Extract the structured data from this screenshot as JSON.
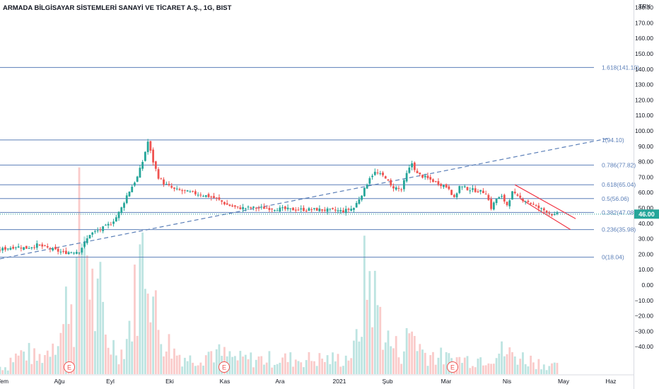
{
  "header": {
    "title": "ARMADA BİLGİSAYAR SİSTEMLERİ SANAYİ VE TİCARET A.Ş., 1G, BIST"
  },
  "axis": {
    "currency": "TRY",
    "ticks": [
      "190.00",
      "180.00",
      "170.00",
      "160.00",
      "150.00",
      "140.00",
      "130.00",
      "120.00",
      "110.00",
      "100.00",
      "90.00",
      "80.00",
      "70.00",
      "60.00",
      "50.00",
      "40.00",
      "30.00",
      "20.00",
      "10.00",
      "0.00",
      "−10.00",
      "−20.00",
      "−30.00",
      "−40.00"
    ],
    "x_labels": [
      "Tem",
      "Ağu",
      "Eyl",
      "Eki",
      "Kas",
      "Ara",
      "2021",
      "Şub",
      "Mar",
      "Nis",
      "May",
      "Haz"
    ]
  },
  "last_price": {
    "label": "46.00",
    "value": 46.0
  },
  "events": [
    "E",
    "E",
    "E"
  ],
  "colors": {
    "up": "#26a69a",
    "down": "#ef5350",
    "fib": "#5b7fb8",
    "trend": "#5b7fb8",
    "channel": "#f23645",
    "badge": "#26a69a"
  },
  "chart_data": {
    "type": "candlestick",
    "title": "ARMADA BİLGİSAYAR SİSTEMLERİ SANAYİ VE TİCARET A.Ş., 1G, BIST",
    "ylabel": "TRY",
    "ylim": [
      -44,
      196
    ],
    "fib_levels": [
      {
        "ratio": "1.618",
        "label": "1.618(141.10)",
        "value": 141.1
      },
      {
        "ratio": "1",
        "label": "1(94.10)",
        "value": 94.1
      },
      {
        "ratio": "0.786",
        "label": "0.786(77.82)",
        "value": 77.82
      },
      {
        "ratio": "0.618",
        "label": "0.618(65.04)",
        "value": 65.04
      },
      {
        "ratio": "0.5",
        "label": "0.5(56.06)",
        "value": 56.06
      },
      {
        "ratio": "0.382",
        "label": "0.382(47.08)",
        "value": 47.08
      },
      {
        "ratio": "0.236",
        "label": "0.236(35.98)",
        "value": 35.98
      },
      {
        "ratio": "0",
        "label": "0(18.04)",
        "value": 18.04
      }
    ],
    "trendline": [
      {
        "x": 0,
        "y": 17
      },
      {
        "x": 230,
        "y": 95
      }
    ],
    "channel": {
      "upper": [
        {
          "x": 195,
          "y": 65
        },
        {
          "x": 218,
          "y": 43
        }
      ],
      "lower": [
        {
          "x": 197,
          "y": 56
        },
        {
          "x": 216,
          "y": 36
        }
      ]
    },
    "price_series": [
      [
        0,
        23
      ],
      [
        6,
        25
      ],
      [
        10,
        24
      ],
      [
        14,
        26
      ],
      [
        18,
        24
      ],
      [
        24,
        21
      ],
      [
        30,
        22
      ],
      [
        32,
        27
      ],
      [
        34,
        33
      ],
      [
        38,
        36
      ],
      [
        42,
        40
      ],
      [
        44,
        44
      ],
      [
        46,
        50
      ],
      [
        48,
        58
      ],
      [
        50,
        64
      ],
      [
        52,
        70
      ],
      [
        54,
        80
      ],
      [
        56,
        93
      ],
      [
        58,
        80
      ],
      [
        60,
        70
      ],
      [
        62,
        66
      ],
      [
        66,
        62
      ],
      [
        72,
        60
      ],
      [
        78,
        58
      ],
      [
        82,
        56
      ],
      [
        86,
        52
      ],
      [
        90,
        50
      ],
      [
        100,
        50
      ],
      [
        110,
        49
      ],
      [
        120,
        49
      ],
      [
        130,
        48
      ],
      [
        134,
        50
      ],
      [
        136,
        56
      ],
      [
        138,
        62
      ],
      [
        140,
        70
      ],
      [
        142,
        73
      ],
      [
        146,
        70
      ],
      [
        148,
        64
      ],
      [
        152,
        62
      ],
      [
        154,
        72
      ],
      [
        156,
        79
      ],
      [
        158,
        72
      ],
      [
        162,
        69
      ],
      [
        166,
        66
      ],
      [
        170,
        63
      ],
      [
        172,
        56
      ],
      [
        174,
        64
      ],
      [
        178,
        62
      ],
      [
        184,
        60
      ],
      [
        186,
        50
      ],
      [
        188,
        56
      ],
      [
        190,
        57
      ],
      [
        192,
        52
      ],
      [
        194,
        60
      ],
      [
        196,
        57
      ],
      [
        200,
        54
      ],
      [
        204,
        50
      ],
      [
        208,
        47
      ],
      [
        210,
        45
      ],
      [
        211,
        46
      ]
    ],
    "volume_series": [
      [
        4,
        2
      ],
      [
        10,
        3
      ],
      [
        14,
        2
      ],
      [
        18,
        3
      ],
      [
        20,
        5
      ],
      [
        24,
        6
      ],
      [
        26,
        12
      ],
      [
        28,
        8
      ],
      [
        30,
        18
      ],
      [
        32,
        20
      ],
      [
        34,
        14
      ],
      [
        36,
        8
      ],
      [
        38,
        10
      ],
      [
        40,
        5
      ],
      [
        42,
        4
      ],
      [
        46,
        3
      ],
      [
        48,
        5
      ],
      [
        50,
        8
      ],
      [
        52,
        12
      ],
      [
        54,
        16
      ],
      [
        56,
        18
      ],
      [
        58,
        10
      ],
      [
        60,
        6
      ],
      [
        62,
        5
      ],
      [
        66,
        3
      ],
      [
        72,
        2
      ],
      [
        80,
        3
      ],
      [
        90,
        2
      ],
      [
        100,
        2
      ],
      [
        110,
        2
      ],
      [
        120,
        2
      ],
      [
        130,
        2
      ],
      [
        134,
        3
      ],
      [
        136,
        6
      ],
      [
        138,
        12
      ],
      [
        140,
        13
      ],
      [
        142,
        10
      ],
      [
        144,
        8
      ],
      [
        146,
        5
      ],
      [
        148,
        4
      ],
      [
        152,
        3
      ],
      [
        156,
        6
      ],
      [
        160,
        3
      ],
      [
        170,
        2
      ],
      [
        180,
        2
      ],
      [
        190,
        3
      ],
      [
        200,
        2
      ],
      [
        210,
        1
      ]
    ]
  }
}
